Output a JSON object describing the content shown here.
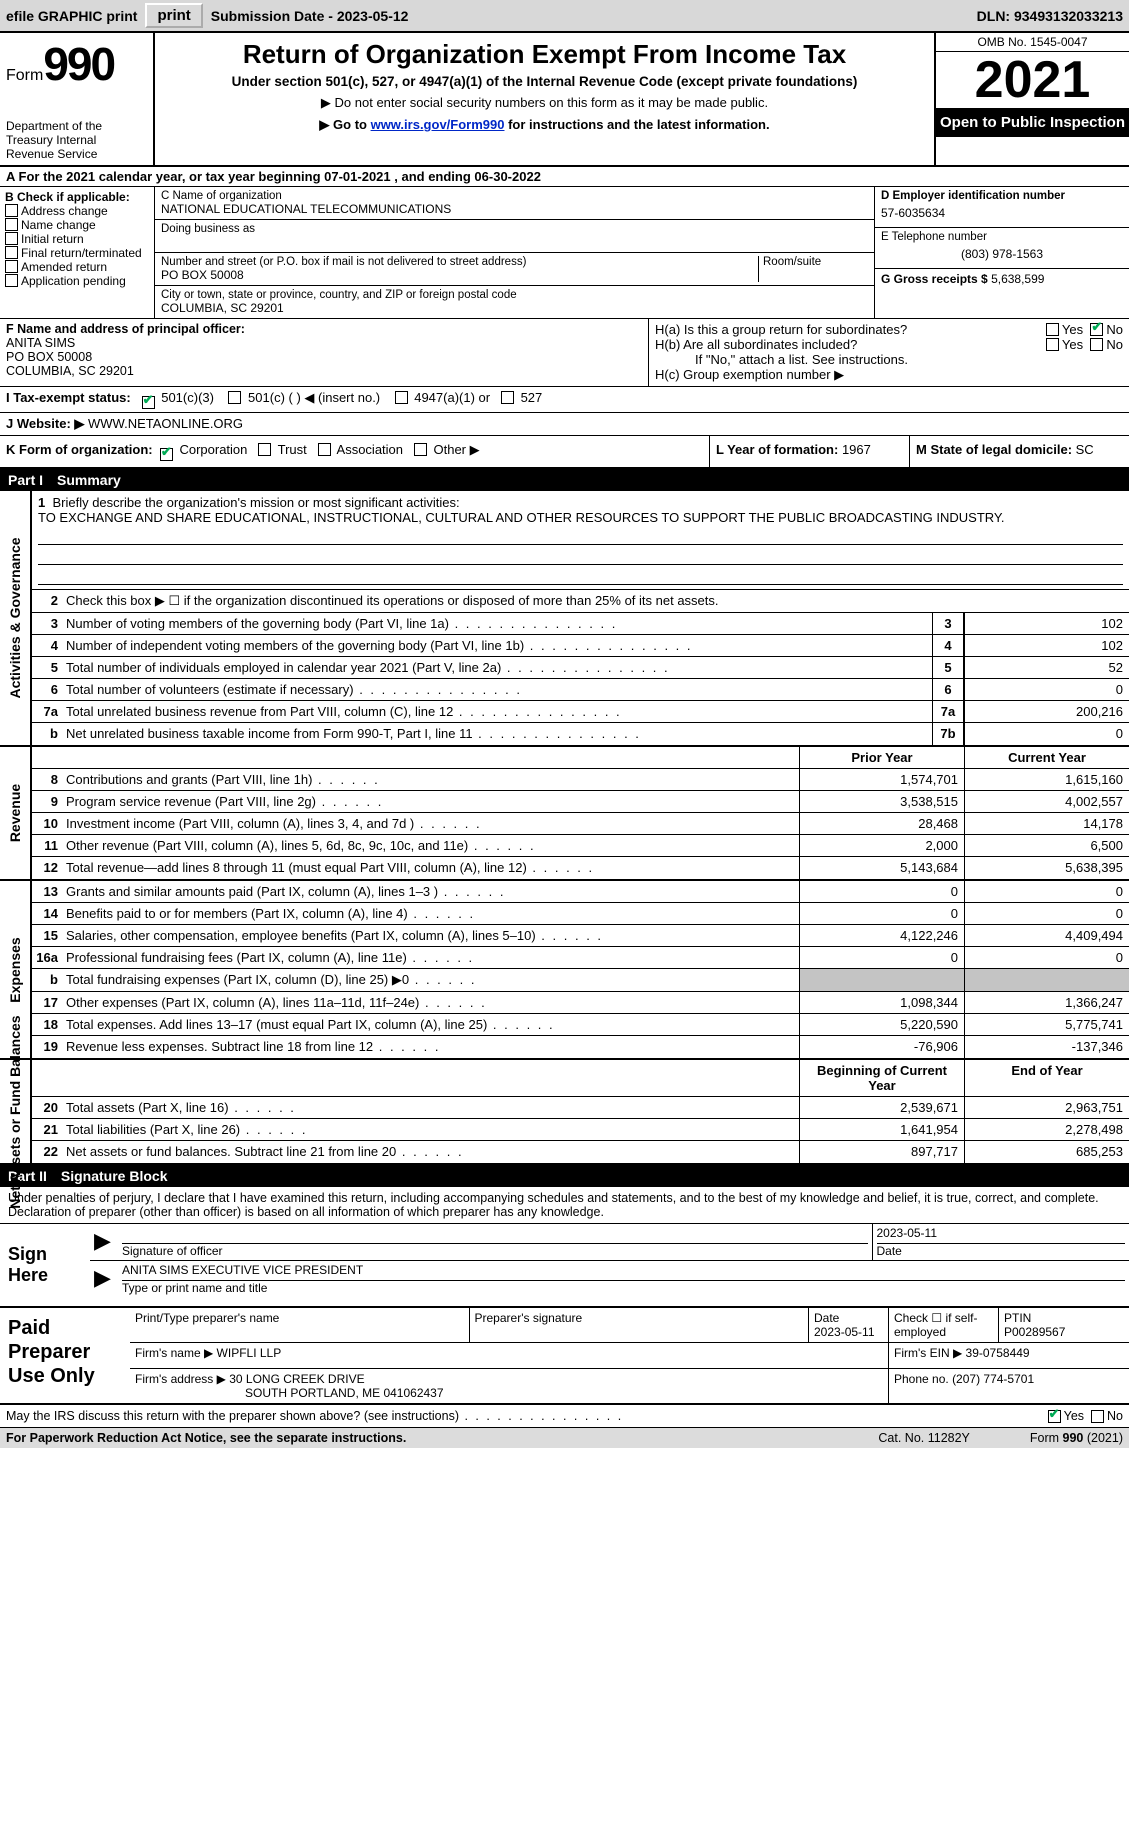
{
  "topbar": {
    "efile": "efile GRAPHIC print",
    "submission_label": "Submission Date - ",
    "submission_date": "2023-05-12",
    "dln_label": "DLN: ",
    "dln": "93493132033213"
  },
  "header": {
    "form_word": "Form",
    "form_num": "990",
    "dept": "Department of the Treasury Internal Revenue Service",
    "title": "Return of Organization Exempt From Income Tax",
    "subtitle": "Under section 501(c), 527, or 4947(a)(1) of the Internal Revenue Code (except private foundations)",
    "note1": "▶ Do not enter social security numbers on this form as it may be made public.",
    "note2_pre": "▶ Go to ",
    "note2_link": "www.irs.gov/Form990",
    "note2_post": " for instructions and the latest information.",
    "omb": "OMB No. 1545-0047",
    "year": "2021",
    "open": "Open to Public Inspection"
  },
  "lineA": {
    "text_pre": "A For the 2021 calendar year, or tax year beginning ",
    "begin": "07-01-2021",
    "mid": " , and ending ",
    "end": "06-30-2022"
  },
  "colB": {
    "head": "B Check if applicable:",
    "opts": [
      "Address change",
      "Name change",
      "Initial return",
      "Final return/terminated",
      "Amended return",
      "Application pending"
    ]
  },
  "colC": {
    "name_lbl": "C Name of organization",
    "name": "NATIONAL EDUCATIONAL TELECOMMUNICATIONS",
    "dba_lbl": "Doing business as",
    "addr_lbl": "Number and street (or P.O. box if mail is not delivered to street address)",
    "room_lbl": "Room/suite",
    "addr": "PO BOX 50008",
    "city_lbl": "City or town, state or province, country, and ZIP or foreign postal code",
    "city": "COLUMBIA, SC  29201"
  },
  "colD": {
    "ein_lbl": "D Employer identification number",
    "ein": "57-6035634",
    "tel_lbl": "E Telephone number",
    "tel": "(803) 978-1563",
    "gross_lbl": "G Gross receipts $ ",
    "gross": "5,638,599"
  },
  "rowF": {
    "lbl": "F Name and address of principal officer:",
    "name": "ANITA SIMS",
    "addr1": "PO BOX 50008",
    "addr2": "COLUMBIA, SC  29201"
  },
  "rowH": {
    "ha": "H(a)  Is this a group return for subordinates?",
    "hb": "H(b)  Are all subordinates included?",
    "hb_note": "If \"No,\" attach a list. See instructions.",
    "hc": "H(c)  Group exemption number ▶",
    "yes": "Yes",
    "no": "No"
  },
  "rowI": {
    "lbl": "I    Tax-exempt status:",
    "o1": "501(c)(3)",
    "o2": "501(c) (  ) ◀ (insert no.)",
    "o3": "4947(a)(1) or",
    "o4": "527"
  },
  "rowJ": {
    "lbl": "J    Website: ▶",
    "val": " WWW.NETAONLINE.ORG"
  },
  "rowK": {
    "lbl": "K Form of organization:",
    "o1": "Corporation",
    "o2": "Trust",
    "o3": "Association",
    "o4": "Other ▶",
    "l_lbl": "L Year of formation: ",
    "l_val": "1967",
    "m_lbl": "M State of legal domicile: ",
    "m_val": "SC"
  },
  "part1": {
    "num": "Part I",
    "title": "Summary"
  },
  "mission": {
    "num": "1",
    "lbl": "Briefly describe the organization's mission or most significant activities:",
    "text": "TO EXCHANGE AND SHARE EDUCATIONAL, INSTRUCTIONAL, CULTURAL AND OTHER RESOURCES TO SUPPORT THE PUBLIC BROADCASTING INDUSTRY."
  },
  "line2": {
    "num": "2",
    "text": "Check this box ▶ ☐ if the organization discontinued its operations or disposed of more than 25% of its net assets."
  },
  "gov_lines": [
    {
      "n": "3",
      "t": "Number of voting members of the governing body (Part VI, line 1a)",
      "box": "3",
      "v": "102"
    },
    {
      "n": "4",
      "t": "Number of independent voting members of the governing body (Part VI, line 1b)",
      "box": "4",
      "v": "102"
    },
    {
      "n": "5",
      "t": "Total number of individuals employed in calendar year 2021 (Part V, line 2a)",
      "box": "5",
      "v": "52"
    },
    {
      "n": "6",
      "t": "Total number of volunteers (estimate if necessary)",
      "box": "6",
      "v": "0"
    },
    {
      "n": "7a",
      "t": "Total unrelated business revenue from Part VIII, column (C), line 12",
      "box": "7a",
      "v": "200,216"
    },
    {
      "n": "b",
      "t": "Net unrelated business taxable income from Form 990-T, Part I, line 11",
      "box": "7b",
      "v": "0"
    }
  ],
  "col_hdrs": {
    "prior": "Prior Year",
    "current": "Current Year",
    "begin": "Beginning of Current Year",
    "end": "End of Year"
  },
  "revenue": [
    {
      "n": "8",
      "t": "Contributions and grants (Part VIII, line 1h)",
      "p": "1,574,701",
      "c": "1,615,160"
    },
    {
      "n": "9",
      "t": "Program service revenue (Part VIII, line 2g)",
      "p": "3,538,515",
      "c": "4,002,557"
    },
    {
      "n": "10",
      "t": "Investment income (Part VIII, column (A), lines 3, 4, and 7d )",
      "p": "28,468",
      "c": "14,178"
    },
    {
      "n": "11",
      "t": "Other revenue (Part VIII, column (A), lines 5, 6d, 8c, 9c, 10c, and 11e)",
      "p": "2,000",
      "c": "6,500"
    },
    {
      "n": "12",
      "t": "Total revenue—add lines 8 through 11 (must equal Part VIII, column (A), line 12)",
      "p": "5,143,684",
      "c": "5,638,395"
    }
  ],
  "expenses": [
    {
      "n": "13",
      "t": "Grants and similar amounts paid (Part IX, column (A), lines 1–3 )",
      "p": "0",
      "c": "0"
    },
    {
      "n": "14",
      "t": "Benefits paid to or for members (Part IX, column (A), line 4)",
      "p": "0",
      "c": "0"
    },
    {
      "n": "15",
      "t": "Salaries, other compensation, employee benefits (Part IX, column (A), lines 5–10)",
      "p": "4,122,246",
      "c": "4,409,494"
    },
    {
      "n": "16a",
      "t": "Professional fundraising fees (Part IX, column (A), line 11e)",
      "p": "0",
      "c": "0"
    },
    {
      "n": "b",
      "t": "Total fundraising expenses (Part IX, column (D), line 25) ▶0",
      "p": "",
      "c": "",
      "shade": true
    },
    {
      "n": "17",
      "t": "Other expenses (Part IX, column (A), lines 11a–11d, 11f–24e)",
      "p": "1,098,344",
      "c": "1,366,247"
    },
    {
      "n": "18",
      "t": "Total expenses. Add lines 13–17 (must equal Part IX, column (A), line 25)",
      "p": "5,220,590",
      "c": "5,775,741"
    },
    {
      "n": "19",
      "t": "Revenue less expenses. Subtract line 18 from line 12",
      "p": "-76,906",
      "c": "-137,346"
    }
  ],
  "netassets": [
    {
      "n": "20",
      "t": "Total assets (Part X, line 16)",
      "p": "2,539,671",
      "c": "2,963,751"
    },
    {
      "n": "21",
      "t": "Total liabilities (Part X, line 26)",
      "p": "1,641,954",
      "c": "2,278,498"
    },
    {
      "n": "22",
      "t": "Net assets or fund balances. Subtract line 21 from line 20",
      "p": "897,717",
      "c": "685,253"
    }
  ],
  "vlabels": {
    "gov": "Activities & Governance",
    "rev": "Revenue",
    "exp": "Expenses",
    "net": "Net Assets or Fund Balances"
  },
  "part2": {
    "num": "Part II",
    "title": "Signature Block"
  },
  "sig_decl": "Under penalties of perjury, I declare that I have examined this return, including accompanying schedules and statements, and to the best of my knowledge and belief, it is true, correct, and complete. Declaration of preparer (other than officer) is based on all information of which preparer has any knowledge.",
  "sign": {
    "here": "Sign Here",
    "sig_lbl": "Signature of officer",
    "date_val": "2023-05-11",
    "date_lbl": "Date",
    "name": "ANITA SIMS  EXECUTIVE VICE PRESIDENT",
    "name_lbl": "Type or print name and title"
  },
  "paid": {
    "title": "Paid Preparer Use Only",
    "r1": {
      "c1": "Print/Type preparer's name",
      "c2": "Preparer's signature",
      "c3_lbl": "Date",
      "c3": "2023-05-11",
      "c4": "Check ☐ if self-employed",
      "c5_lbl": "PTIN",
      "c5": "P00289567"
    },
    "r2": {
      "lbl": "Firm's name    ▶",
      "val": "WIPFLI LLP",
      "ein_lbl": "Firm's EIN ▶",
      "ein": "39-0758449"
    },
    "r3": {
      "lbl": "Firm's address ▶",
      "val1": "30 LONG CREEK DRIVE",
      "val2": "SOUTH PORTLAND, ME  041062437",
      "ph_lbl": "Phone no. ",
      "ph": "(207) 774-5701"
    }
  },
  "footer": {
    "q": "May the IRS discuss this return with the preparer shown above? (see instructions)",
    "yes": "Yes",
    "no": "No",
    "pra": "For Paperwork Reduction Act Notice, see the separate instructions.",
    "cat": "Cat. No. 11282Y",
    "form": "Form 990 (2021)"
  }
}
